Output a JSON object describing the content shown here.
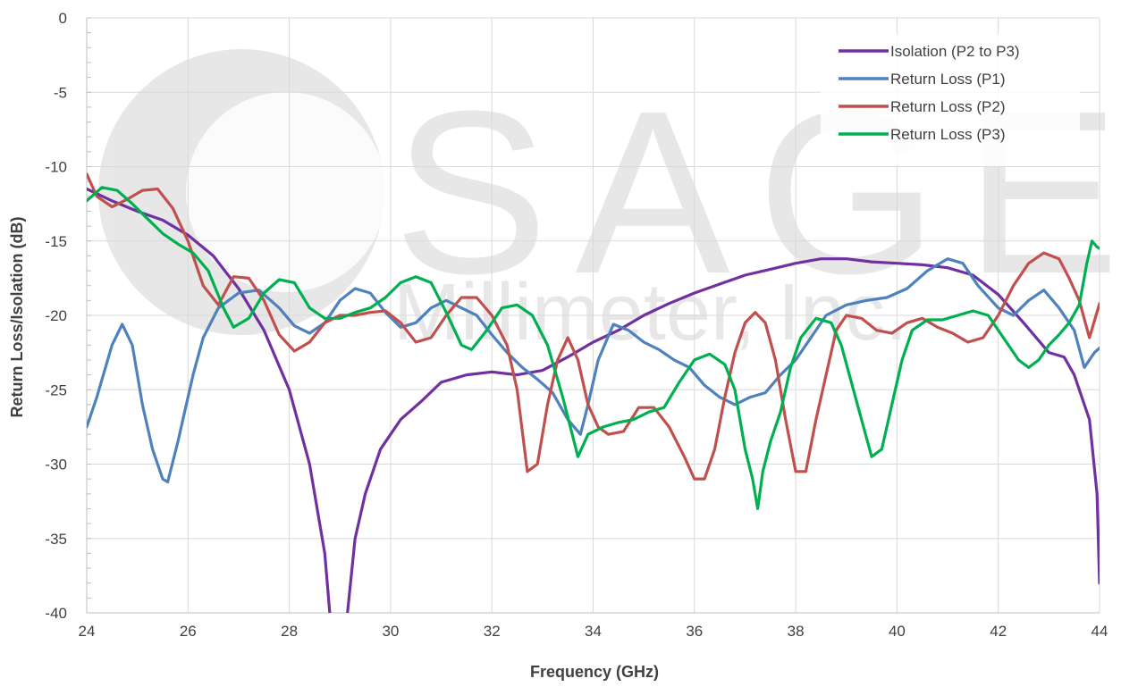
{
  "chart_data": {
    "type": "line",
    "xlabel": "Frequency (GHz)",
    "ylabel": "Return Loss/Isolation (dB)",
    "xlim": [
      24,
      44
    ],
    "ylim": [
      -40,
      0
    ],
    "xticks": [
      24,
      26,
      28,
      30,
      32,
      34,
      36,
      38,
      40,
      42,
      44
    ],
    "yticks": [
      0,
      -5,
      -10,
      -15,
      -20,
      -25,
      -30,
      -35,
      -40
    ],
    "xtick_labels": [
      "24",
      "26",
      "28",
      "30",
      "32",
      "34",
      "36",
      "38",
      "40",
      "42",
      "44"
    ],
    "ytick_labels": [
      "0",
      "-5",
      "-10",
      "-15",
      "-20",
      "-25",
      "-30",
      "-35",
      "-40"
    ],
    "grid": true,
    "legend_position": "top-right",
    "watermark": {
      "main": "SAGE",
      "sub": "Millimeter, Inc."
    },
    "series": [
      {
        "name": "Isolation (P2 to P3)",
        "color": "#7030A0",
        "points": [
          [
            24,
            -11.5
          ],
          [
            24.5,
            -12.3
          ],
          [
            25,
            -13
          ],
          [
            25.5,
            -13.6
          ],
          [
            26,
            -14.6
          ],
          [
            26.5,
            -16
          ],
          [
            27,
            -18.2
          ],
          [
            27.5,
            -21
          ],
          [
            28,
            -25
          ],
          [
            28.4,
            -30
          ],
          [
            28.7,
            -36
          ],
          [
            28.8,
            -40
          ],
          null,
          [
            29.15,
            -40
          ],
          [
            29.3,
            -35
          ],
          [
            29.5,
            -32
          ],
          [
            29.8,
            -29
          ],
          [
            30.2,
            -27
          ],
          [
            30.6,
            -25.8
          ],
          [
            31,
            -24.5
          ],
          [
            31.5,
            -24
          ],
          [
            32,
            -23.8
          ],
          [
            32.5,
            -24
          ],
          [
            33,
            -23.7
          ],
          [
            33.5,
            -22.8
          ],
          [
            34,
            -21.8
          ],
          [
            34.5,
            -21
          ],
          [
            35,
            -20
          ],
          [
            35.5,
            -19.2
          ],
          [
            36,
            -18.5
          ],
          [
            36.5,
            -17.9
          ],
          [
            37,
            -17.3
          ],
          [
            37.5,
            -16.9
          ],
          [
            38,
            -16.5
          ],
          [
            38.5,
            -16.2
          ],
          [
            39,
            -16.2
          ],
          [
            39.5,
            -16.4
          ],
          [
            40,
            -16.5
          ],
          [
            40.5,
            -16.6
          ],
          [
            41,
            -16.8
          ],
          [
            41.5,
            -17.3
          ],
          [
            42,
            -18.6
          ],
          [
            42.5,
            -20.5
          ],
          [
            43,
            -22.5
          ],
          [
            43.3,
            -22.8
          ],
          [
            43.5,
            -24
          ],
          [
            43.8,
            -27
          ],
          [
            43.95,
            -32
          ],
          [
            44,
            -38
          ]
        ]
      },
      {
        "name": "Return Loss (P1)",
        "color": "#4F81BD",
        "points": [
          [
            24,
            -27.5
          ],
          [
            24.2,
            -25.5
          ],
          [
            24.5,
            -22
          ],
          [
            24.7,
            -20.6
          ],
          [
            24.9,
            -22
          ],
          [
            25.1,
            -26
          ],
          [
            25.3,
            -29
          ],
          [
            25.5,
            -31
          ],
          [
            25.6,
            -31.2
          ],
          [
            25.8,
            -28.5
          ],
          [
            25.9,
            -27
          ],
          [
            26.1,
            -24
          ],
          [
            26.3,
            -21.5
          ],
          [
            26.6,
            -19.5
          ],
          [
            27,
            -18.5
          ],
          [
            27.4,
            -18.3
          ],
          [
            27.8,
            -19.5
          ],
          [
            28.1,
            -20.7
          ],
          [
            28.4,
            -21.2
          ],
          [
            28.7,
            -20.5
          ],
          [
            29,
            -19
          ],
          [
            29.3,
            -18.2
          ],
          [
            29.6,
            -18.5
          ],
          [
            29.9,
            -19.8
          ],
          [
            30.2,
            -20.8
          ],
          [
            30.5,
            -20.5
          ],
          [
            30.8,
            -19.5
          ],
          [
            31.1,
            -19
          ],
          [
            31.4,
            -19.5
          ],
          [
            31.7,
            -20
          ],
          [
            32,
            -21.3
          ],
          [
            32.3,
            -22.5
          ],
          [
            32.6,
            -23.5
          ],
          [
            32.9,
            -24.3
          ],
          [
            33.2,
            -25.2
          ],
          [
            33.5,
            -27
          ],
          [
            33.75,
            -28
          ],
          [
            33.9,
            -26
          ],
          [
            34.1,
            -23
          ],
          [
            34.4,
            -20.6
          ],
          [
            34.7,
            -21
          ],
          [
            35,
            -21.8
          ],
          [
            35.3,
            -22.3
          ],
          [
            35.6,
            -23
          ],
          [
            35.9,
            -23.5
          ],
          [
            36.2,
            -24.7
          ],
          [
            36.5,
            -25.5
          ],
          [
            36.8,
            -26
          ],
          [
            37.1,
            -25.5
          ],
          [
            37.4,
            -25.2
          ],
          [
            37.7,
            -24
          ],
          [
            38,
            -23
          ],
          [
            38.3,
            -21.5
          ],
          [
            38.6,
            -20
          ],
          [
            39,
            -19.3
          ],
          [
            39.4,
            -19
          ],
          [
            39.8,
            -18.8
          ],
          [
            40.2,
            -18.2
          ],
          [
            40.6,
            -17
          ],
          [
            41,
            -16.2
          ],
          [
            41.3,
            -16.5
          ],
          [
            41.6,
            -18
          ],
          [
            42,
            -19.5
          ],
          [
            42.3,
            -20
          ],
          [
            42.6,
            -19
          ],
          [
            42.9,
            -18.3
          ],
          [
            43.2,
            -19.5
          ],
          [
            43.5,
            -21
          ],
          [
            43.7,
            -23.5
          ],
          [
            43.9,
            -22.5
          ],
          [
            44,
            -22.2
          ]
        ]
      },
      {
        "name": "Return Loss (P2)",
        "color": "#C0504D",
        "points": [
          [
            24,
            -10.5
          ],
          [
            24.2,
            -12
          ],
          [
            24.5,
            -12.7
          ],
          [
            24.8,
            -12.2
          ],
          [
            25.1,
            -11.6
          ],
          [
            25.4,
            -11.5
          ],
          [
            25.7,
            -12.8
          ],
          [
            26,
            -15
          ],
          [
            26.3,
            -18
          ],
          [
            26.6,
            -19.3
          ],
          [
            26.9,
            -17.4
          ],
          [
            27.2,
            -17.5
          ],
          [
            27.5,
            -19
          ],
          [
            27.8,
            -21.3
          ],
          [
            28.1,
            -22.4
          ],
          [
            28.4,
            -21.8
          ],
          [
            28.7,
            -20.5
          ],
          [
            29,
            -20
          ],
          [
            29.3,
            -20
          ],
          [
            29.6,
            -19.8
          ],
          [
            29.9,
            -19.7
          ],
          [
            30.2,
            -20.5
          ],
          [
            30.5,
            -21.8
          ],
          [
            30.8,
            -21.5
          ],
          [
            31.1,
            -20
          ],
          [
            31.4,
            -18.8
          ],
          [
            31.7,
            -18.8
          ],
          [
            32,
            -20
          ],
          [
            32.3,
            -22
          ],
          [
            32.5,
            -25
          ],
          [
            32.7,
            -30.5
          ],
          [
            32.9,
            -30
          ],
          [
            33.1,
            -26
          ],
          [
            33.3,
            -23
          ],
          [
            33.5,
            -21.5
          ],
          [
            33.7,
            -23
          ],
          [
            33.9,
            -26
          ],
          [
            34.1,
            -27.5
          ],
          [
            34.3,
            -28
          ],
          [
            34.6,
            -27.8
          ],
          [
            34.9,
            -26.2
          ],
          [
            35.2,
            -26.2
          ],
          [
            35.5,
            -27.5
          ],
          [
            35.8,
            -29.5
          ],
          [
            36,
            -31
          ],
          [
            36.2,
            -31
          ],
          [
            36.4,
            -29
          ],
          [
            36.6,
            -25.5
          ],
          [
            36.8,
            -22.5
          ],
          [
            37,
            -20.5
          ],
          [
            37.2,
            -19.8
          ],
          [
            37.4,
            -20.5
          ],
          [
            37.6,
            -23
          ],
          [
            37.8,
            -27
          ],
          [
            38,
            -30.5
          ],
          [
            38.2,
            -30.5
          ],
          [
            38.4,
            -27
          ],
          [
            38.6,
            -24
          ],
          [
            38.8,
            -21
          ],
          [
            39,
            -20
          ],
          [
            39.3,
            -20.2
          ],
          [
            39.6,
            -21
          ],
          [
            39.9,
            -21.2
          ],
          [
            40.2,
            -20.5
          ],
          [
            40.5,
            -20.2
          ],
          [
            40.8,
            -20.8
          ],
          [
            41.1,
            -21.2
          ],
          [
            41.4,
            -21.8
          ],
          [
            41.7,
            -21.5
          ],
          [
            42,
            -20
          ],
          [
            42.3,
            -18
          ],
          [
            42.6,
            -16.5
          ],
          [
            42.9,
            -15.8
          ],
          [
            43.2,
            -16.2
          ],
          [
            43.4,
            -17.5
          ],
          [
            43.6,
            -19
          ],
          [
            43.8,
            -21.5
          ],
          [
            44,
            -19.2
          ]
        ]
      },
      {
        "name": "Return Loss (P3)",
        "color": "#00B050",
        "points": [
          [
            24,
            -12.3
          ],
          [
            24.3,
            -11.4
          ],
          [
            24.6,
            -11.6
          ],
          [
            24.9,
            -12.5
          ],
          [
            25.2,
            -13.5
          ],
          [
            25.5,
            -14.5
          ],
          [
            25.8,
            -15.2
          ],
          [
            26.1,
            -15.8
          ],
          [
            26.4,
            -17
          ],
          [
            26.7,
            -19.5
          ],
          [
            26.9,
            -20.8
          ],
          [
            27.2,
            -20.2
          ],
          [
            27.5,
            -18.5
          ],
          [
            27.8,
            -17.6
          ],
          [
            28.1,
            -17.8
          ],
          [
            28.4,
            -19.5
          ],
          [
            28.7,
            -20.2
          ],
          [
            29,
            -20.2
          ],
          [
            29.3,
            -19.8
          ],
          [
            29.6,
            -19.5
          ],
          [
            29.9,
            -18.8
          ],
          [
            30.2,
            -17.8
          ],
          [
            30.5,
            -17.4
          ],
          [
            30.8,
            -17.8
          ],
          [
            31.1,
            -19.8
          ],
          [
            31.4,
            -22
          ],
          [
            31.6,
            -22.3
          ],
          [
            31.9,
            -21
          ],
          [
            32.2,
            -19.5
          ],
          [
            32.5,
            -19.3
          ],
          [
            32.8,
            -20
          ],
          [
            33.1,
            -22
          ],
          [
            33.4,
            -25.5
          ],
          [
            33.7,
            -29.5
          ],
          [
            33.9,
            -28
          ],
          [
            34.2,
            -27.5
          ],
          [
            34.5,
            -27.2
          ],
          [
            34.8,
            -27
          ],
          [
            35.1,
            -26.5
          ],
          [
            35.4,
            -26.2
          ],
          [
            35.7,
            -24.5
          ],
          [
            36,
            -23
          ],
          [
            36.3,
            -22.6
          ],
          [
            36.6,
            -23.3
          ],
          [
            36.8,
            -25
          ],
          [
            37,
            -29
          ],
          [
            37.15,
            -31
          ],
          [
            37.25,
            -33
          ],
          [
            37.35,
            -30.5
          ],
          [
            37.5,
            -28.5
          ],
          [
            37.7,
            -26.5
          ],
          [
            37.9,
            -23.5
          ],
          [
            38.1,
            -21.5
          ],
          [
            38.4,
            -20.2
          ],
          [
            38.7,
            -20.5
          ],
          [
            38.9,
            -22
          ],
          [
            39.1,
            -24.5
          ],
          [
            39.3,
            -27
          ],
          [
            39.5,
            -29.5
          ],
          [
            39.7,
            -29
          ],
          [
            39.9,
            -26
          ],
          [
            40.1,
            -23
          ],
          [
            40.3,
            -21
          ],
          [
            40.6,
            -20.3
          ],
          [
            40.9,
            -20.3
          ],
          [
            41.2,
            -20
          ],
          [
            41.5,
            -19.7
          ],
          [
            41.8,
            -20
          ],
          [
            42.1,
            -21.5
          ],
          [
            42.4,
            -23
          ],
          [
            42.6,
            -23.5
          ],
          [
            42.8,
            -23
          ],
          [
            43,
            -22
          ],
          [
            43.2,
            -21.3
          ],
          [
            43.4,
            -20.5
          ],
          [
            43.6,
            -19.3
          ],
          [
            43.75,
            -16.5
          ],
          [
            43.85,
            -15
          ],
          [
            43.95,
            -15.4
          ],
          [
            44,
            -15.5
          ]
        ]
      }
    ]
  }
}
